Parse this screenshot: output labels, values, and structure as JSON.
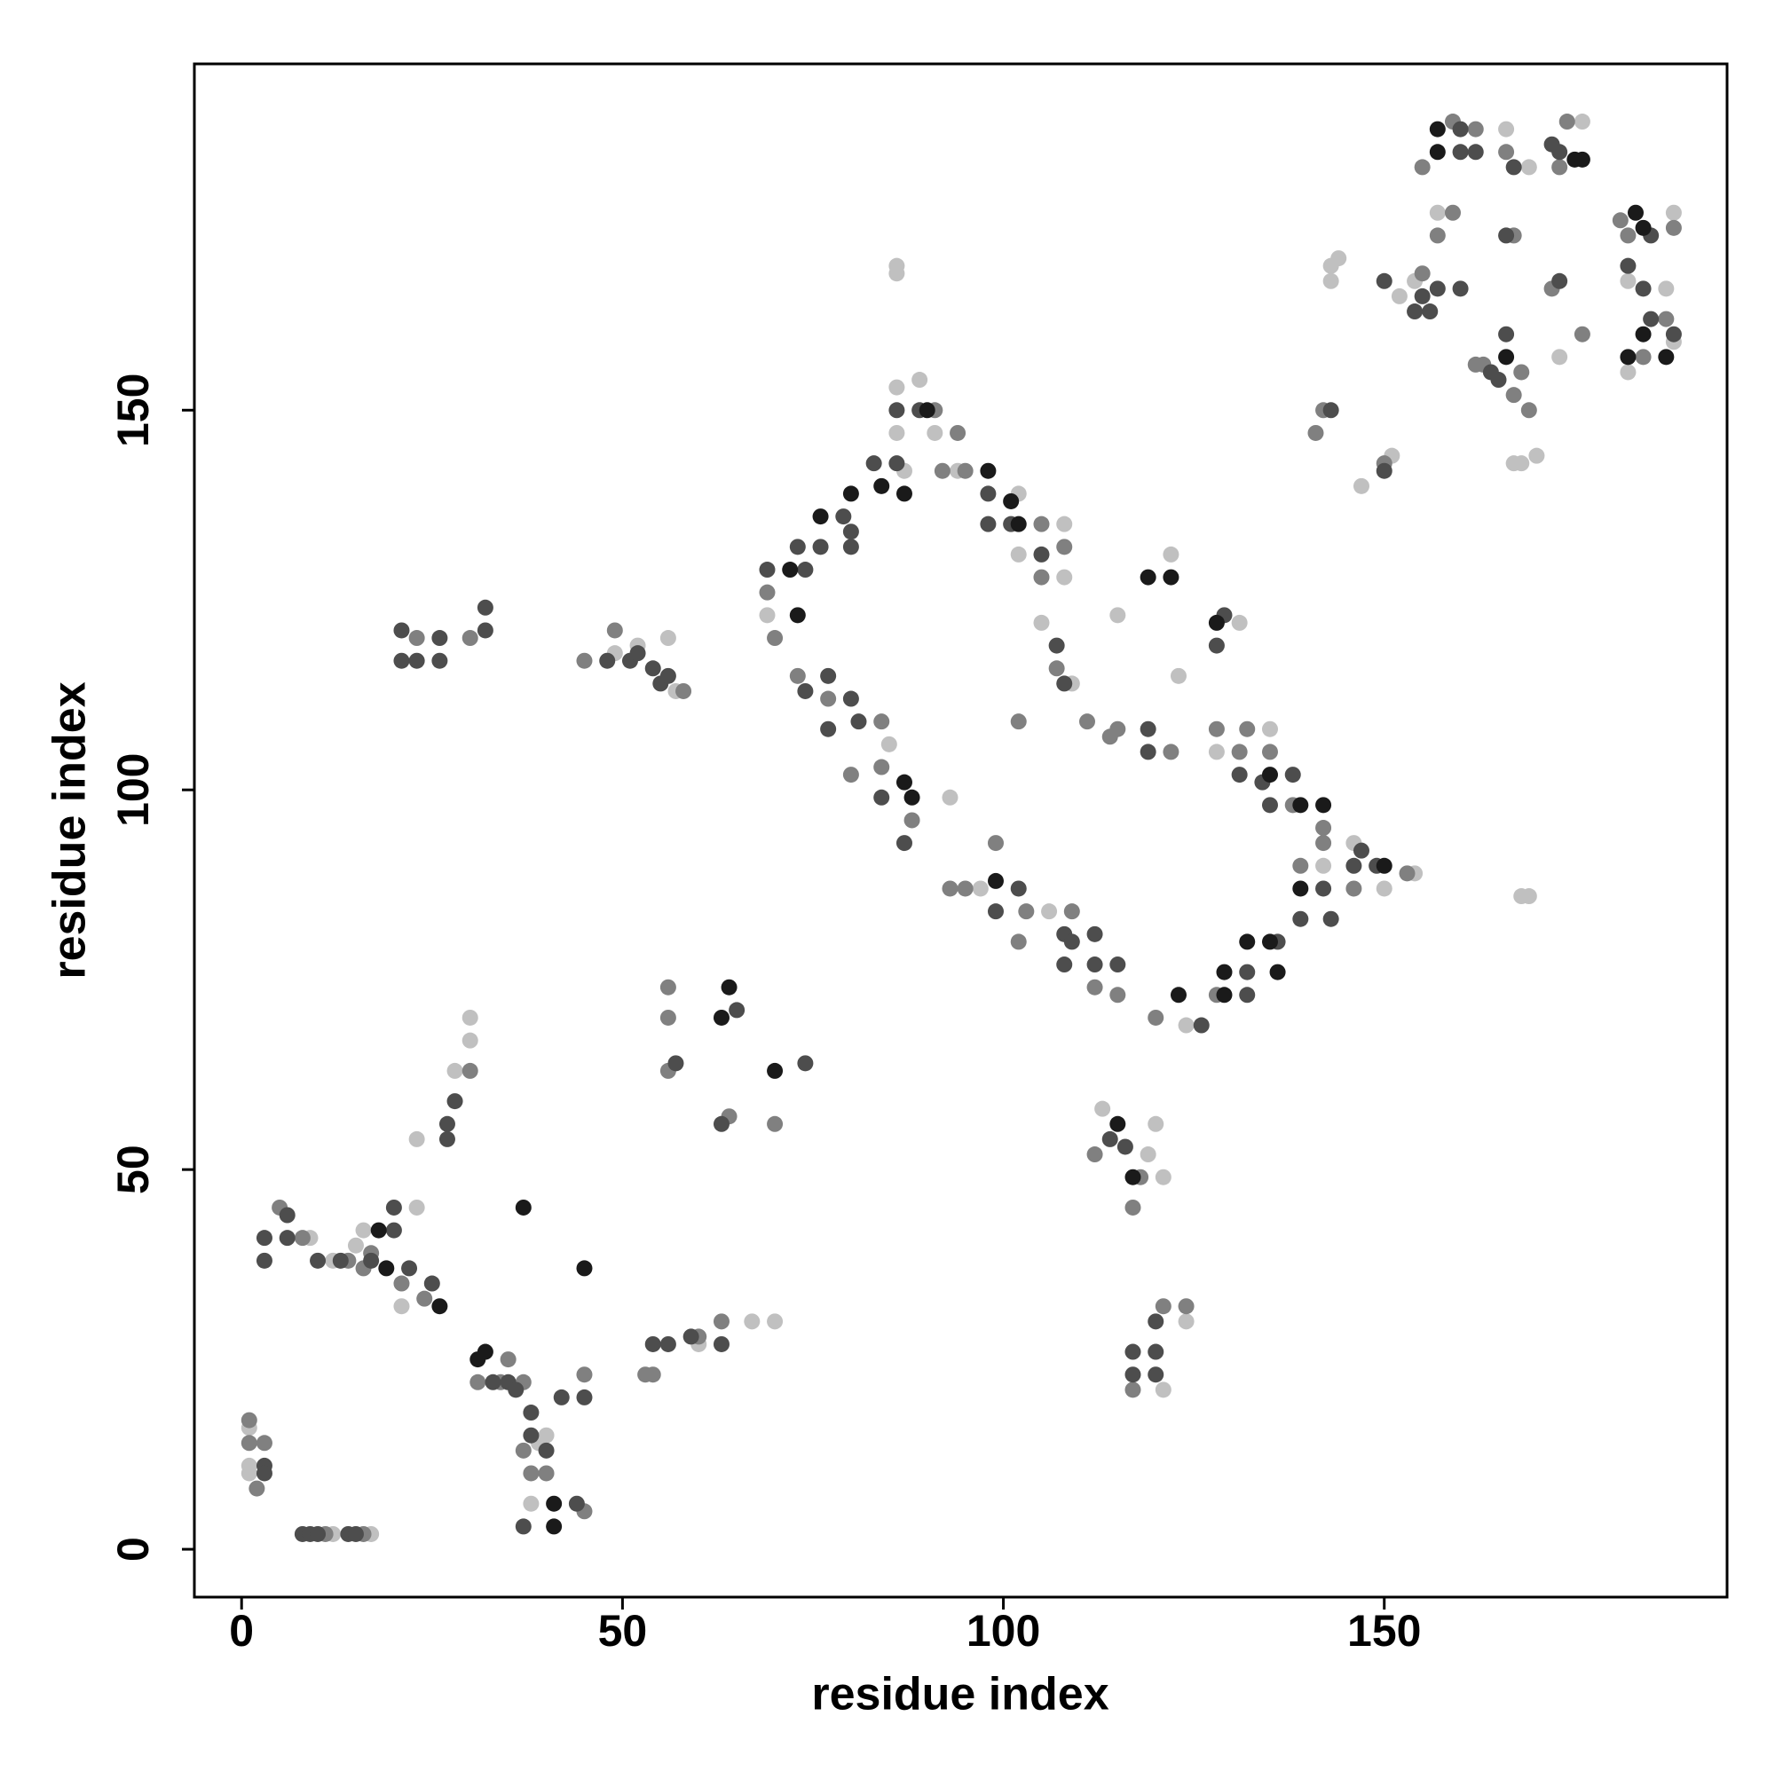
{
  "chart_data": {
    "type": "scatter",
    "x_label": "residue index",
    "y_label": "residue index",
    "xlim": [
      -6.2,
      195
    ],
    "ylim": [
      -6.3,
      195.6
    ],
    "xticks": [
      0,
      50,
      100,
      150
    ],
    "yticks": [
      0,
      50,
      100,
      150
    ],
    "series": [
      {
        "color": "#c0c0c0",
        "x": [
          1,
          1,
          1,
          12,
          17,
          9,
          12,
          15,
          16,
          23,
          21,
          23,
          28,
          30,
          30,
          38,
          39,
          40,
          49,
          52,
          56,
          57,
          60,
          67,
          70,
          69,
          86,
          86,
          87,
          89,
          91,
          94,
          108,
          108,
          105,
          102,
          102,
          109,
          85,
          93,
          97,
          106,
          115,
          121,
          120,
          119,
          113,
          121,
          124,
          123,
          131,
          122,
          128,
          135,
          142,
          146,
          150,
          154,
          168,
          169,
          143,
          144,
          143,
          147,
          151,
          152,
          154,
          157,
          166,
          167,
          168,
          170,
          169,
          173,
          176,
          188,
          187,
          188,
          182,
          182,
          124,
          86,
          86
        ],
        "values": [
          16,
          11,
          10,
          2,
          2,
          41,
          38,
          40,
          42,
          45,
          32,
          54,
          63,
          67,
          70,
          6,
          14,
          15,
          118,
          119,
          120,
          113,
          27,
          30,
          30,
          123,
          153,
          147,
          142,
          154,
          147,
          142,
          135,
          128,
          122,
          131,
          139,
          114,
          106,
          99,
          87,
          84,
          123,
          49,
          56,
          52,
          58,
          21,
          30,
          115,
          122,
          131,
          105,
          108,
          90,
          93,
          87,
          89,
          86,
          86,
          169,
          170,
          167,
          140,
          144,
          165,
          167,
          176,
          187,
          143,
          143,
          144,
          182,
          157,
          188,
          176,
          166,
          159,
          167,
          155,
          69,
          169,
          168
        ]
      },
      {
        "color": "#808080",
        "x": [
          1,
          1,
          2,
          3,
          11,
          16,
          5,
          8,
          14,
          16,
          17,
          21,
          24,
          30,
          31,
          34,
          35,
          37,
          38,
          40,
          45,
          45,
          49,
          45,
          58,
          30,
          23,
          56,
          56,
          56,
          64,
          70,
          70,
          69,
          73,
          77,
          84,
          84,
          80,
          88,
          91,
          92,
          94,
          95,
          105,
          105,
          108,
          107,
          102,
          93,
          95,
          99,
          102,
          103,
          109,
          114,
          111,
          115,
          122,
          128,
          132,
          131,
          135,
          138,
          142,
          142,
          139,
          128,
          120,
          112,
          115,
          112,
          117,
          118,
          121,
          124,
          117,
          141,
          142,
          150,
          155,
          157,
          159,
          159,
          162,
          155,
          166,
          167,
          169,
          167,
          168,
          163,
          162,
          174,
          173,
          172,
          176,
          181,
          182,
          184,
          187,
          188,
          146,
          153,
          53,
          54,
          60,
          63,
          37
        ],
        "values": [
          17,
          14,
          8,
          14,
          2,
          2,
          45,
          41,
          38,
          37,
          39,
          35,
          33,
          63,
          22,
          22,
          25,
          13,
          10,
          10,
          23,
          5,
          121,
          117,
          113,
          120,
          120,
          74,
          70,
          63,
          57,
          56,
          120,
          126,
          115,
          112,
          109,
          103,
          102,
          96,
          150,
          142,
          147,
          142,
          128,
          135,
          132,
          116,
          109,
          87,
          87,
          93,
          80,
          84,
          84,
          107,
          109,
          108,
          105,
          108,
          108,
          105,
          105,
          98,
          95,
          93,
          90,
          73,
          70,
          74,
          73,
          52,
          45,
          49,
          32,
          32,
          21,
          147,
          150,
          143,
          168,
          173,
          176,
          188,
          187,
          182,
          184,
          173,
          150,
          152,
          155,
          156,
          156,
          188,
          182,
          166,
          160,
          175,
          173,
          157,
          162,
          174,
          87,
          89,
          23,
          23,
          28,
          30,
          22
        ]
      },
      {
        "color": "#4d4d4d",
        "x": [
          3,
          3,
          6,
          6,
          10,
          20,
          20,
          22,
          25,
          3,
          3,
          8,
          9,
          10,
          14,
          15,
          33,
          35,
          36,
          38,
          38,
          37,
          42,
          44,
          45,
          48,
          51,
          52,
          54,
          55,
          56,
          21,
          21,
          23,
          26,
          26,
          32,
          32,
          69,
          73,
          74,
          76,
          79,
          80,
          80,
          83,
          86,
          86,
          89,
          98,
          98,
          101,
          105,
          107,
          108,
          74,
          77,
          80,
          77,
          81,
          84,
          87,
          99,
          102,
          108,
          109,
          112,
          108,
          112,
          115,
          119,
          119,
          131,
          134,
          135,
          138,
          139,
          136,
          132,
          132,
          126,
          143,
          142,
          116,
          114,
          117,
          120,
          120,
          117,
          120,
          128,
          129,
          150,
          143,
          156,
          157,
          155,
          154,
          160,
          160,
          160,
          162,
          167,
          166,
          173,
          172,
          165,
          166,
          164,
          173,
          182,
          184,
          185,
          188,
          185,
          150,
          146,
          147,
          149,
          13,
          17,
          40,
          27,
          27,
          28,
          57,
          63,
          74,
          65,
          59,
          63,
          56,
          54
        ],
        "values": [
          41,
          38,
          44,
          41,
          38,
          45,
          42,
          37,
          35,
          11,
          10,
          2,
          2,
          2,
          2,
          2,
          22,
          22,
          21,
          18,
          15,
          3,
          20,
          6,
          20,
          117,
          117,
          118,
          116,
          114,
          115,
          121,
          117,
          117,
          117,
          120,
          124,
          121,
          129,
          132,
          129,
          132,
          136,
          134,
          132,
          143,
          143,
          150,
          150,
          139,
          135,
          135,
          131,
          119,
          114,
          113,
          115,
          112,
          108,
          109,
          99,
          93,
          84,
          87,
          81,
          80,
          81,
          77,
          77,
          77,
          108,
          105,
          102,
          101,
          98,
          102,
          83,
          80,
          76,
          73,
          69,
          83,
          87,
          53,
          54,
          26,
          26,
          23,
          23,
          30,
          119,
          123,
          142,
          150,
          163,
          166,
          165,
          163,
          166,
          187,
          184,
          184,
          182,
          173,
          184,
          185,
          154,
          160,
          155,
          167,
          169,
          166,
          173,
          160,
          162,
          167,
          90,
          92,
          90,
          38,
          38,
          13,
          56,
          54,
          59,
          64,
          56,
          64,
          71,
          28,
          27,
          27,
          27
        ]
      },
      {
        "color": "#1a1a1a",
        "x": [
          19,
          18,
          37,
          45,
          32,
          31,
          41,
          41,
          26,
          64,
          63,
          70,
          72,
          73,
          76,
          80,
          84,
          87,
          90,
          98,
          102,
          101,
          87,
          88,
          99,
          119,
          122,
          128,
          115,
          117,
          123,
          129,
          129,
          132,
          135,
          135,
          139,
          139,
          136,
          142,
          150,
          157,
          157,
          175,
          176,
          166,
          183,
          184,
          182,
          187,
          184
        ],
        "values": [
          37,
          42,
          45,
          37,
          26,
          25,
          3,
          6,
          32,
          74,
          70,
          63,
          129,
          123,
          136,
          139,
          140,
          139,
          150,
          142,
          135,
          138,
          101,
          99,
          88,
          128,
          128,
          122,
          56,
          49,
          73,
          73,
          76,
          80,
          80,
          102,
          98,
          87,
          76,
          98,
          90,
          187,
          184,
          183,
          183,
          157,
          176,
          174,
          157,
          157,
          160
        ]
      }
    ]
  }
}
